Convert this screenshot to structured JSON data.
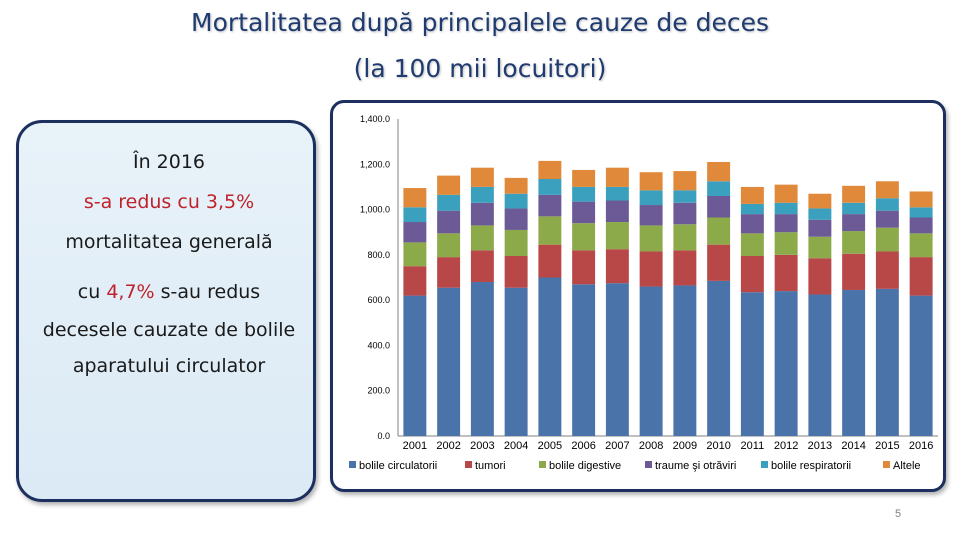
{
  "title": {
    "line1": "Mortalitatea după principalele cauze de deces",
    "line2": "(la 100 mii locuitori)"
  },
  "textbox": {
    "year_line": "În 2016",
    "line2_red": "s-a redus cu 3,5%",
    "line3": "mortalitatea generală",
    "line4_prefix": "cu ",
    "line4_red": "4,7%",
    "line4_suffix": " s-au redus",
    "line5": "decesele cauzate de bolile",
    "line6": "aparatului circulator"
  },
  "page_number": "5",
  "chart_data": {
    "type": "bar",
    "stacked": true,
    "title": "",
    "xlabel": "",
    "ylabel": "",
    "ylim": [
      0,
      1400
    ],
    "yticks": [
      0,
      200,
      400,
      600,
      800,
      1000,
      1200,
      1400
    ],
    "ytick_labels": [
      "0.0",
      "200.0",
      "400.0",
      "600.0",
      "800.0",
      "1,000.0",
      "1,200.0",
      "1,400.0"
    ],
    "legend_position": "bottom",
    "categories": [
      "2001",
      "2002",
      "2003",
      "2004",
      "2005",
      "2006",
      "2007",
      "2008",
      "2009",
      "2010",
      "2011",
      "2012",
      "2013",
      "2014",
      "2015",
      "2016"
    ],
    "series": [
      {
        "name": "bolile circulatorii",
        "color": "#4a73aa",
        "values": [
          620,
          655,
          680,
          655,
          700,
          670,
          675,
          660,
          665,
          685,
          635,
          640,
          625,
          645,
          650,
          620
        ]
      },
      {
        "name": "tumori",
        "color": "#b84747",
        "values": [
          130,
          135,
          140,
          140,
          145,
          150,
          150,
          155,
          155,
          160,
          160,
          160,
          160,
          160,
          165,
          170
        ]
      },
      {
        "name": "bolile digestive",
        "color": "#8caa4a",
        "values": [
          105,
          105,
          110,
          115,
          125,
          120,
          120,
          115,
          115,
          120,
          100,
          100,
          95,
          100,
          105,
          105
        ]
      },
      {
        "name": "traume şi otrăviri",
        "color": "#6b5a95",
        "values": [
          90,
          100,
          100,
          95,
          95,
          95,
          95,
          90,
          95,
          95,
          85,
          80,
          75,
          75,
          75,
          70
        ]
      },
      {
        "name": "bolile respiratorii",
        "color": "#3aa0bd",
        "values": [
          65,
          70,
          70,
          65,
          70,
          65,
          60,
          65,
          55,
          65,
          45,
          50,
          50,
          50,
          55,
          45
        ]
      },
      {
        "name": "Altele",
        "color": "#e0893a",
        "values": [
          85,
          85,
          85,
          70,
          80,
          75,
          85,
          80,
          85,
          85,
          75,
          80,
          65,
          75,
          75,
          70
        ]
      }
    ]
  }
}
